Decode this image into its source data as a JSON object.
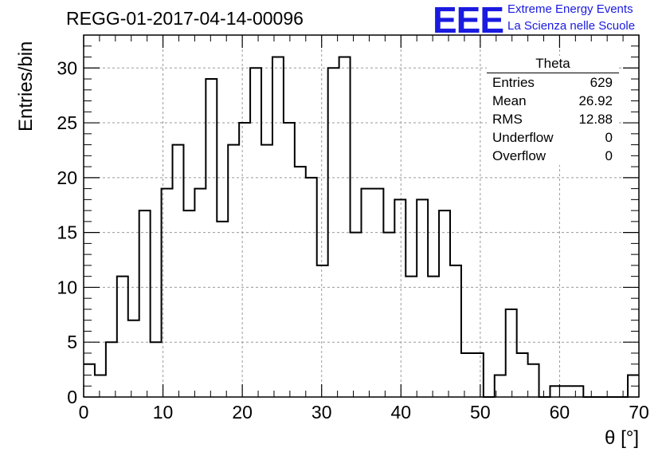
{
  "title": "REGG-01-2017-04-14-00096",
  "logo": {
    "mark": "EEE",
    "line1": "Extreme Energy Events",
    "line2": "La Scienza nelle Scuole"
  },
  "stats": {
    "title": "Theta",
    "rows": [
      {
        "label": "Entries",
        "value": "629"
      },
      {
        "label": "Mean",
        "value": "26.92"
      },
      {
        "label": "RMS",
        "value": "12.88"
      },
      {
        "label": "Underflow",
        "value": "0"
      },
      {
        "label": "Overflow",
        "value": "0"
      }
    ]
  },
  "chart_data": {
    "type": "histogram",
    "title": "REGG-01-2017-04-14-00096",
    "xlabel": "θ [°]",
    "ylabel": "Entries/bin",
    "xlim": [
      0,
      70
    ],
    "ylim": [
      0,
      33
    ],
    "bin_width": 1.4,
    "grid": true,
    "xticks": [
      0,
      10,
      20,
      30,
      40,
      50,
      60,
      70
    ],
    "yticks": [
      0,
      5,
      10,
      15,
      20,
      25,
      30
    ],
    "values": [
      3,
      2,
      5,
      11,
      7,
      17,
      5,
      19,
      23,
      17,
      19,
      29,
      16,
      23,
      25,
      30,
      23,
      31,
      25,
      21,
      20,
      12,
      30,
      31,
      15,
      19,
      19,
      15,
      18,
      11,
      18,
      11,
      17,
      12,
      4,
      4,
      0,
      2,
      8,
      4,
      3,
      0,
      1,
      1,
      1,
      0,
      0,
      0,
      0,
      2
    ]
  },
  "colors": {
    "line": "#000000",
    "grid": "#9a9a9a",
    "logo": "#1a1ae0"
  }
}
